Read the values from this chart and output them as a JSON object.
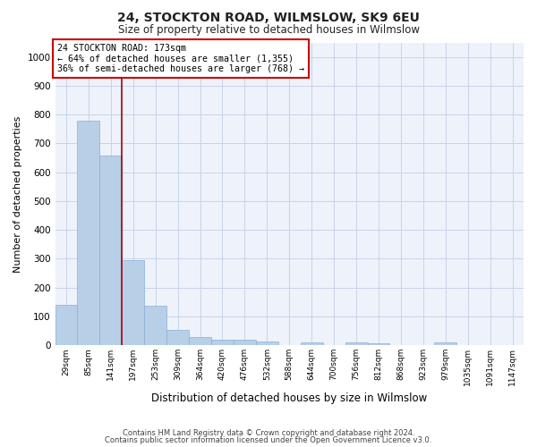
{
  "title1": "24, STOCKTON ROAD, WILMSLOW, SK9 6EU",
  "title2": "Size of property relative to detached houses in Wilmslow",
  "xlabel": "Distribution of detached houses by size in Wilmslow",
  "ylabel": "Number of detached properties",
  "categories": [
    "29sqm",
    "85sqm",
    "141sqm",
    "197sqm",
    "253sqm",
    "309sqm",
    "364sqm",
    "420sqm",
    "476sqm",
    "532sqm",
    "588sqm",
    "644sqm",
    "700sqm",
    "756sqm",
    "812sqm",
    "868sqm",
    "923sqm",
    "979sqm",
    "1035sqm",
    "1091sqm",
    "1147sqm"
  ],
  "values": [
    140,
    778,
    658,
    295,
    138,
    55,
    28,
    18,
    18,
    13,
    0,
    10,
    0,
    10,
    8,
    0,
    0,
    10,
    0,
    0,
    0
  ],
  "bar_color": "#b8cfe8",
  "bar_edge_color": "#8aafd4",
  "grid_color": "#c8d4e8",
  "annotation_text": "24 STOCKTON ROAD: 173sqm\n← 64% of detached houses are smaller (1,355)\n36% of semi-detached houses are larger (768) →",
  "annotation_box_color": "#ffffff",
  "annotation_box_edge": "#cc0000",
  "vline_color": "#aa0000",
  "ylim": [
    0,
    1050
  ],
  "yticks": [
    0,
    100,
    200,
    300,
    400,
    500,
    600,
    700,
    800,
    900,
    1000
  ],
  "footer1": "Contains HM Land Registry data © Crown copyright and database right 2024.",
  "footer2": "Contains public sector information licensed under the Open Government Licence v3.0.",
  "bg_color": "#eef2fa"
}
